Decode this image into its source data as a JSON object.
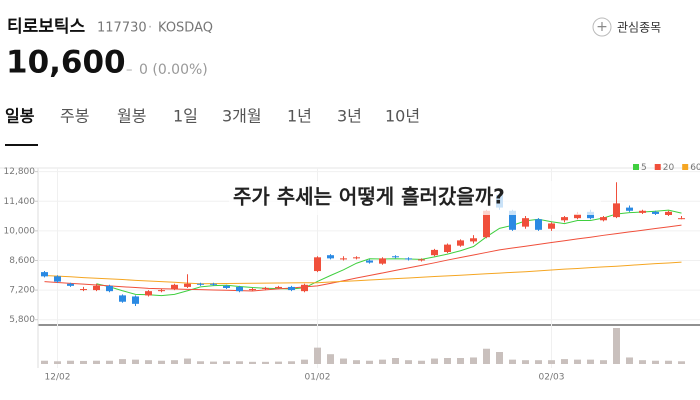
{
  "header": {
    "name": "티로보틱스",
    "code": "117730",
    "market": "KOSDAQ",
    "watch": "관심종목",
    "price": "10,600",
    "change": "0 (0.00%)"
  },
  "tabs": [
    "일봉",
    "주봉",
    "월봉",
    "1일",
    "3개월",
    "1년",
    "3년",
    "10년"
  ],
  "chart_data": {
    "type": "candlestick",
    "title": "주가 추세는 어떻게 흘러갔을까?",
    "categories": [
      null,
      "12/02",
      null,
      null,
      null,
      null,
      null,
      null,
      null,
      null,
      null,
      null,
      null,
      null,
      null,
      null,
      null,
      null,
      null,
      null,
      null,
      "01/02",
      null,
      null,
      null,
      null,
      null,
      null,
      null,
      null,
      null,
      null,
      null,
      null,
      null,
      null,
      null,
      null,
      null,
      "02/03",
      null,
      null,
      null,
      null,
      null,
      null,
      null,
      null,
      null,
      null
    ],
    "open": [
      8050,
      7850,
      7500,
      7200,
      7200,
      7400,
      6950,
      6900,
      6950,
      7150,
      7250,
      7350,
      7500,
      7500,
      7400,
      7350,
      7200,
      7250,
      7300,
      7350,
      7150,
      8100,
      8850,
      8650,
      8700,
      8600,
      8450,
      8800,
      8700,
      8600,
      8850,
      9000,
      9300,
      9500,
      9700,
      11700,
      10950,
      10200,
      10550,
      10100,
      10500,
      10600,
      10900,
      10500,
      10650,
      11100,
      10850,
      10900,
      10750,
      10600
    ],
    "high": [
      8100,
      7900,
      7550,
      7350,
      7500,
      7450,
      7000,
      6950,
      7200,
      7250,
      7500,
      7950,
      7550,
      7550,
      7450,
      7400,
      7300,
      7350,
      7400,
      7400,
      7500,
      8800,
      8900,
      8800,
      8800,
      8650,
      8750,
      8850,
      8750,
      8700,
      9150,
      9400,
      9600,
      9800,
      11000,
      11800,
      11000,
      10700,
      10600,
      10400,
      10700,
      10900,
      11000,
      10700,
      12300,
      11200,
      11000,
      10950,
      10950,
      10700
    ],
    "low": [
      7800,
      7550,
      7350,
      7150,
      7150,
      7100,
      6600,
      6450,
      6900,
      7100,
      7200,
      7300,
      7400,
      7400,
      7250,
      7100,
      7150,
      7200,
      7250,
      7150,
      7100,
      8050,
      8650,
      8600,
      8650,
      8450,
      8400,
      8700,
      8600,
      8550,
      8800,
      8950,
      9250,
      9400,
      9650,
      11000,
      10000,
      10100,
      10000,
      10000,
      10400,
      10550,
      10550,
      10450,
      10600,
      10900,
      10800,
      10750,
      10700,
      10550
    ],
    "close": [
      7850,
      7600,
      7400,
      7250,
      7400,
      7150,
      6650,
      6550,
      7150,
      7200,
      7450,
      7500,
      7450,
      7450,
      7300,
      7150,
      7250,
      7300,
      7350,
      7200,
      7450,
      8750,
      8700,
      8700,
      8750,
      8500,
      8700,
      8750,
      8650,
      8650,
      9100,
      9350,
      9550,
      9650,
      10950,
      11100,
      10050,
      10600,
      10050,
      10350,
      10650,
      10800,
      10600,
      10650,
      11300,
      10950,
      10950,
      10800,
      10900,
      10600
    ],
    "volume": [
      30000,
      25000,
      30000,
      28000,
      30000,
      30000,
      45000,
      40000,
      35000,
      30000,
      35000,
      50000,
      25000,
      22000,
      25000,
      25000,
      20000,
      20000,
      22000,
      25000,
      40000,
      150000,
      90000,
      50000,
      35000,
      30000,
      40000,
      55000,
      35000,
      30000,
      50000,
      55000,
      55000,
      60000,
      140000,
      110000,
      40000,
      35000,
      35000,
      35000,
      45000,
      40000,
      40000,
      35000,
      330000,
      60000,
      35000,
      30000,
      30000,
      25000
    ],
    "up_color": "#f04f3b",
    "down_color": "#2b8ae3",
    "volume_color": "#c9c0bd",
    "series": [
      {
        "name": "5",
        "color": "#3fcf3f",
        "values": [
          null,
          null,
          null,
          null,
          7500,
          7360,
          7170,
          7000,
          6980,
          6940,
          7000,
          7170,
          7350,
          7410,
          7430,
          7370,
          7320,
          7290,
          7270,
          7250,
          7310,
          7610,
          7890,
          8160,
          8470,
          8680,
          8670,
          8680,
          8670,
          8650,
          8770,
          8900,
          9060,
          9260,
          9720,
          10120,
          10260,
          10470,
          10550,
          10430,
          10340,
          10490,
          10490,
          10610,
          10800,
          10860,
          10890,
          10930,
          10980,
          10840
        ]
      },
      {
        "name": "20",
        "color": "#f04f3b",
        "values": [
          7600,
          7560,
          7520,
          7480,
          7440,
          7400,
          7360,
          7320,
          7280,
          7265,
          7250,
          7235,
          7220,
          7205,
          7190,
          7175,
          7160,
          7210,
          7260,
          7300,
          7350,
          7400,
          7520,
          7640,
          7770,
          7890,
          8010,
          8130,
          8250,
          8370,
          8490,
          8620,
          8740,
          8860,
          8980,
          9100,
          9190,
          9270,
          9360,
          9450,
          9530,
          9620,
          9700,
          9790,
          9870,
          9950,
          10030,
          10110,
          10190,
          10270
        ]
      },
      {
        "name": "60",
        "color": "#f5a623",
        "values": [
          7890,
          7860,
          7830,
          7790,
          7760,
          7730,
          7700,
          7660,
          7630,
          7600,
          7570,
          7530,
          7500,
          7505,
          7510,
          7520,
          7525,
          7530,
          7535,
          7540,
          7545,
          7550,
          7580,
          7610,
          7640,
          7680,
          7710,
          7740,
          7770,
          7810,
          7840,
          7870,
          7900,
          7940,
          7970,
          8000,
          8040,
          8070,
          8110,
          8150,
          8190,
          8220,
          8260,
          8300,
          8330,
          8370,
          8410,
          8450,
          8480,
          8520
        ]
      }
    ],
    "ylim": [
      5550,
      13350
    ],
    "yticks": [
      {
        "value": 5800,
        "label": "5,800"
      },
      {
        "value": 7200,
        "label": "7,200"
      },
      {
        "value": 8600,
        "label": "8,600"
      },
      {
        "value": 10000,
        "label": "10,000"
      },
      {
        "value": 11400,
        "label": "11,400"
      },
      {
        "value": 12800,
        "label": "12,800"
      }
    ],
    "grid": true,
    "legend": "top-right"
  }
}
